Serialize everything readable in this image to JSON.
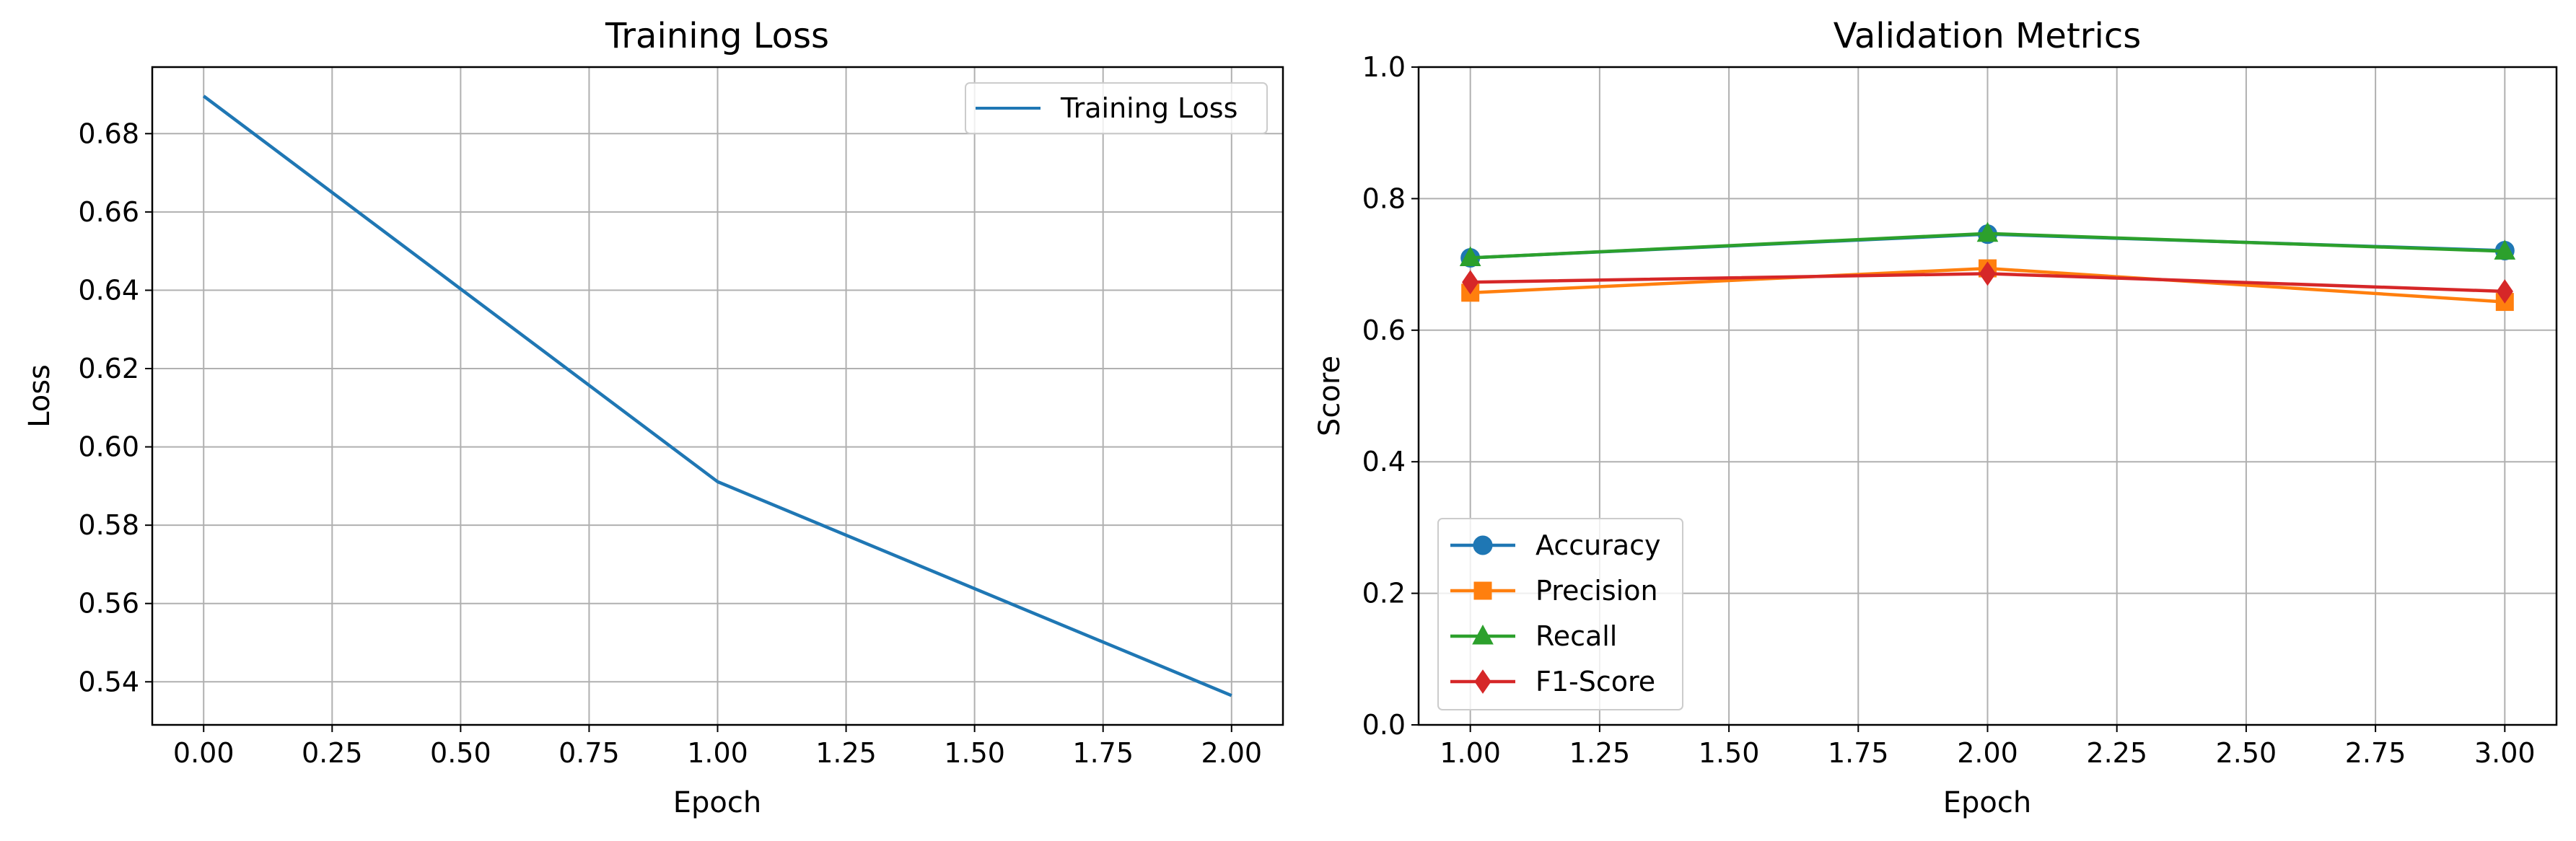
{
  "chart_data": [
    {
      "type": "line",
      "title": "Training Loss",
      "xlabel": "Epoch",
      "ylabel": "Loss",
      "xlim": [
        -0.1,
        2.1
      ],
      "ylim": [
        0.529,
        0.697
      ],
      "xticks": [
        0.0,
        0.25,
        0.5,
        0.75,
        1.0,
        1.25,
        1.5,
        1.75,
        2.0
      ],
      "xtick_labels": [
        "0.00",
        "0.25",
        "0.50",
        "0.75",
        "1.00",
        "1.25",
        "1.50",
        "1.75",
        "2.00"
      ],
      "yticks": [
        0.54,
        0.56,
        0.58,
        0.6,
        0.62,
        0.64,
        0.66,
        0.68
      ],
      "ytick_labels": [
        "0.54",
        "0.56",
        "0.58",
        "0.60",
        "0.62",
        "0.64",
        "0.66",
        "0.68"
      ],
      "grid": true,
      "legend_position": "top-right",
      "series": [
        {
          "name": "Training Loss",
          "color": "#1f77b4",
          "marker": "none",
          "x": [
            0,
            1,
            2
          ],
          "y": [
            0.6896,
            0.5911,
            0.5365
          ]
        }
      ]
    },
    {
      "type": "line",
      "title": "Validation Metrics",
      "xlabel": "Epoch",
      "ylabel": "Score",
      "xlim": [
        0.9,
        3.1
      ],
      "ylim": [
        0.0,
        1.0
      ],
      "xticks": [
        1.0,
        1.25,
        1.5,
        1.75,
        2.0,
        2.25,
        2.5,
        2.75,
        3.0
      ],
      "xtick_labels": [
        "1.00",
        "1.25",
        "1.50",
        "1.75",
        "2.00",
        "2.25",
        "2.50",
        "2.75",
        "3.00"
      ],
      "yticks": [
        0.0,
        0.2,
        0.4,
        0.6,
        0.8,
        1.0
      ],
      "ytick_labels": [
        "0.0",
        "0.2",
        "0.4",
        "0.6",
        "0.8",
        "1.0"
      ],
      "grid": true,
      "legend_position": "lower-left",
      "series": [
        {
          "name": "Accuracy",
          "color": "#1f77b4",
          "marker": "circle",
          "x": [
            1,
            2,
            3
          ],
          "y": [
            0.71,
            0.746,
            0.721
          ]
        },
        {
          "name": "Precision",
          "color": "#ff7f0e",
          "marker": "square",
          "x": [
            1,
            2,
            3
          ],
          "y": [
            0.657,
            0.694,
            0.643
          ]
        },
        {
          "name": "Recall",
          "color": "#2ca02c",
          "marker": "triangle",
          "x": [
            1,
            2,
            3
          ],
          "y": [
            0.71,
            0.747,
            0.72
          ]
        },
        {
          "name": "F1-Score",
          "color": "#d62728",
          "marker": "diamond",
          "x": [
            1,
            2,
            3
          ],
          "y": [
            0.673,
            0.686,
            0.659
          ]
        }
      ]
    }
  ]
}
